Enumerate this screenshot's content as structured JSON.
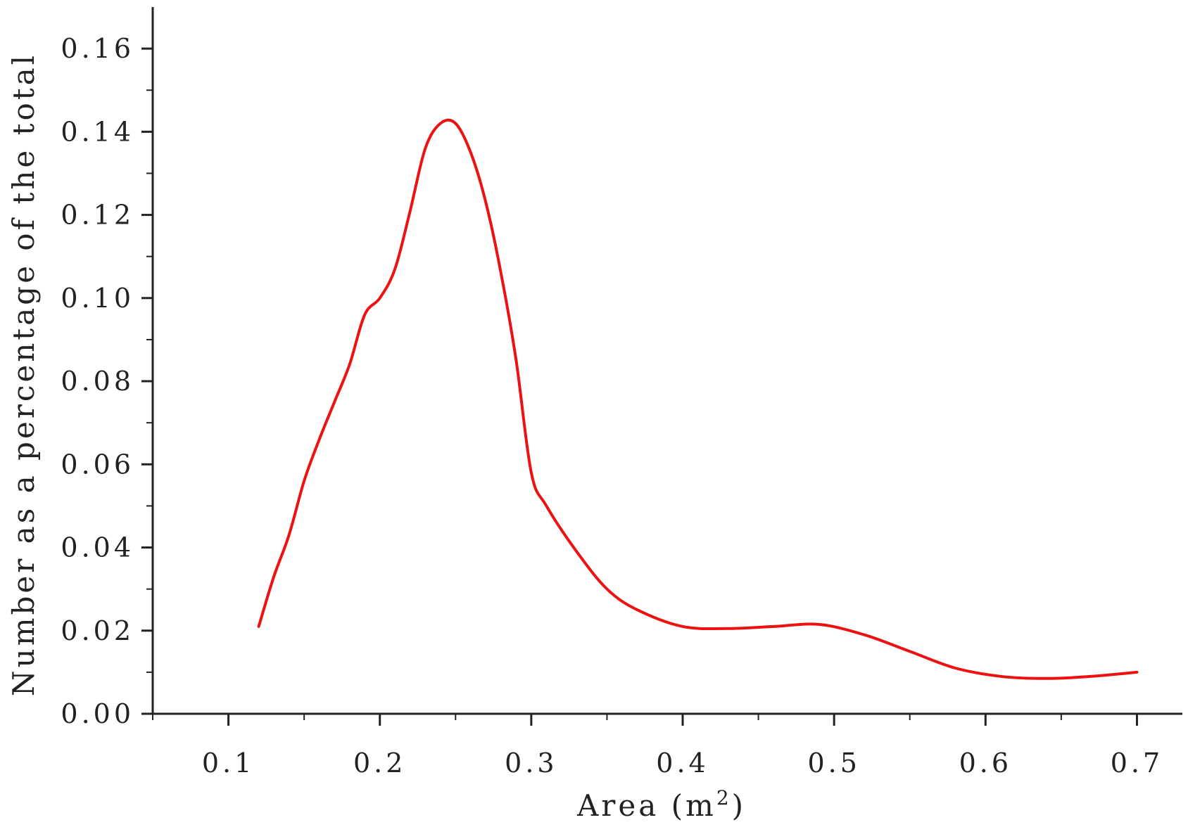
{
  "chart_data": {
    "type": "line",
    "xlabel": "Area (m",
    "xlabel_sup": "2",
    "xlabel_close": ")",
    "ylabel": "Number as a percentage of the total",
    "xlim": [
      0.05,
      0.73
    ],
    "ylim": [
      0.0,
      0.17
    ],
    "xticks": [
      {
        "v": 0.1,
        "label": "0.1"
      },
      {
        "v": 0.2,
        "label": "0.2"
      },
      {
        "v": 0.3,
        "label": "0.3"
      },
      {
        "v": 0.4,
        "label": "0.4"
      },
      {
        "v": 0.5,
        "label": "0.5"
      },
      {
        "v": 0.6,
        "label": "0.6"
      },
      {
        "v": 0.7,
        "label": "0.7"
      }
    ],
    "yticks": [
      {
        "v": 0.0,
        "label": "0.00"
      },
      {
        "v": 0.02,
        "label": "0.02"
      },
      {
        "v": 0.04,
        "label": "0.04"
      },
      {
        "v": 0.06,
        "label": "0.06"
      },
      {
        "v": 0.08,
        "label": "0.08"
      },
      {
        "v": 0.1,
        "label": "0.10"
      },
      {
        "v": 0.12,
        "label": "0.12"
      },
      {
        "v": 0.14,
        "label": "0.14"
      },
      {
        "v": 0.16,
        "label": "0.16"
      }
    ],
    "series": [
      {
        "color": "#ee1111",
        "x": [
          0.12,
          0.13,
          0.14,
          0.15,
          0.16,
          0.17,
          0.18,
          0.19,
          0.2,
          0.21,
          0.22,
          0.23,
          0.24,
          0.25,
          0.26,
          0.27,
          0.28,
          0.29,
          0.3,
          0.31,
          0.33,
          0.35,
          0.37,
          0.4,
          0.43,
          0.46,
          0.49,
          0.52,
          0.55,
          0.58,
          0.61,
          0.64,
          0.67,
          0.7
        ],
        "y": [
          0.021,
          0.033,
          0.043,
          0.056,
          0.066,
          0.075,
          0.084,
          0.096,
          0.1,
          0.107,
          0.121,
          0.136,
          0.142,
          0.142,
          0.135,
          0.123,
          0.106,
          0.085,
          0.058,
          0.05,
          0.039,
          0.03,
          0.025,
          0.021,
          0.0205,
          0.021,
          0.0215,
          0.019,
          0.015,
          0.011,
          0.009,
          0.0085,
          0.009,
          0.01
        ]
      }
    ]
  }
}
